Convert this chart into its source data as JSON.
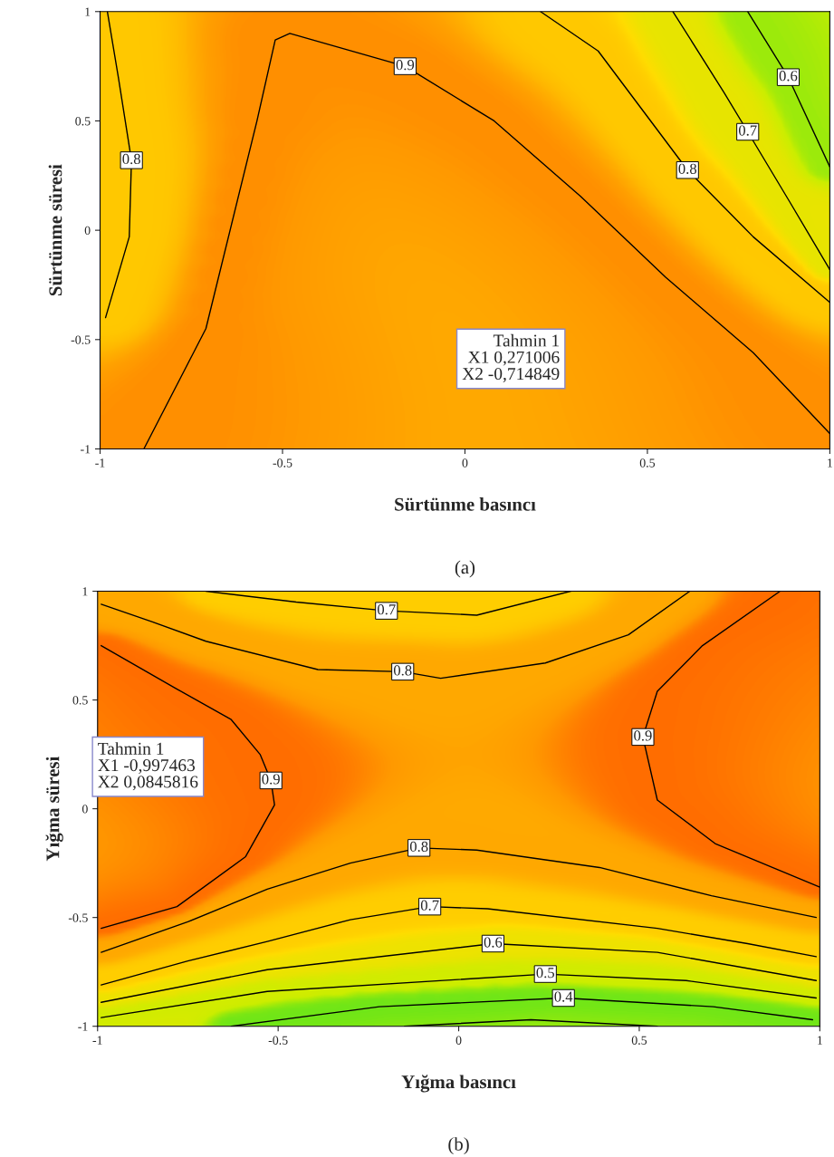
{
  "chart_data": [
    {
      "type": "line",
      "xlabel": "Sürtünme basıncı",
      "ylabel": "Sürtünme süresi",
      "xlim": [
        -1,
        1
      ],
      "ylim": [
        -1,
        1
      ],
      "xticks": [
        -1,
        -0.5,
        0,
        0.5,
        1
      ],
      "yticks": [
        -1,
        -0.5,
        0,
        0.5,
        1
      ],
      "series": [
        {
          "name": "0.8",
          "color": "#000000",
          "x": [
            -0.98,
            -0.95,
            -0.914,
            -0.92,
            -0.985
          ],
          "values": [
            1,
            0.7,
            0.32,
            -0.03,
            -0.4
          ]
        },
        {
          "name": "0.9",
          "color": "#000000",
          "x": [
            -0.88,
            -0.71,
            -0.57,
            -0.52,
            -0.48,
            -0.164,
            0.08,
            0.317,
            0.55,
            0.79,
            1
          ],
          "values": [
            -1,
            -0.45,
            0.5,
            0.87,
            0.9,
            0.75,
            0.5,
            0.155,
            -0.215,
            -0.56,
            -0.93
          ]
        },
        {
          "name": "0.8",
          "color": "#000000",
          "x": [
            0.207,
            0.365,
            0.61,
            0.79,
            1
          ],
          "values": [
            1,
            0.82,
            0.275,
            -0.03,
            -0.33
          ]
        },
        {
          "name": "0.7",
          "color": "#000000",
          "x": [
            0.57,
            0.71,
            0.775,
            0.89,
            1
          ],
          "values": [
            1,
            0.63,
            0.45,
            0.13,
            -0.18
          ]
        },
        {
          "name": "0.6",
          "color": "#000000",
          "x": [
            0.775,
            0.886,
            1
          ],
          "values": [
            1,
            0.7,
            0.29
          ]
        }
      ],
      "annotations": [
        "Tahmin 1\nX1 0,271006\nX2 -0,714849",
        "(a)"
      ]
    },
    {
      "type": "line",
      "xlabel": "Yığma basıncı",
      "ylabel": "Yığma süresi",
      "xlim": [
        -1,
        1
      ],
      "ylim": [
        -1,
        1
      ],
      "xticks": [
        -1,
        -0.5,
        0,
        0.5,
        1
      ],
      "yticks": [
        -1,
        -0.5,
        0,
        0.5,
        1
      ],
      "series": [
        {
          "name": "0.7",
          "color": "#000000",
          "x": [
            -0.7,
            -0.45,
            -0.2,
            0.05,
            0.31
          ],
          "values": [
            1,
            0.95,
            0.91,
            0.89,
            1
          ]
        },
        {
          "name": "0.8",
          "color": "#000000",
          "x": [
            -0.99,
            -0.85,
            -0.7,
            -0.39,
            -0.155,
            -0.05,
            0.24,
            0.47,
            0.64
          ],
          "values": [
            0.94,
            0.86,
            0.77,
            0.64,
            0.63,
            0.6,
            0.67,
            0.8,
            1
          ]
        },
        {
          "name": "0.9",
          "color": "#000000",
          "x": [
            -0.99,
            -0.78,
            -0.63,
            -0.55,
            -0.52,
            -0.51,
            -0.59,
            -0.78,
            -0.99
          ],
          "values": [
            0.75,
            0.55,
            0.41,
            0.25,
            0.13,
            0.018,
            -0.22,
            -0.45,
            -0.55
          ]
        },
        {
          "name": "0.9",
          "color": "#000000",
          "x": [
            0.89,
            0.675,
            0.55,
            0.51,
            0.55,
            0.71,
            1
          ],
          "values": [
            1,
            0.75,
            0.54,
            0.33,
            0.04,
            -0.16,
            -0.36
          ]
        },
        {
          "name": "0.8",
          "color": "#000000",
          "x": [
            -0.99,
            -0.75,
            -0.53,
            -0.3,
            -0.11,
            0.05,
            0.39,
            0.7,
            0.99
          ],
          "values": [
            -0.66,
            -0.52,
            -0.37,
            -0.25,
            -0.18,
            -0.19,
            -0.27,
            -0.4,
            -0.5
          ]
        },
        {
          "name": "0.7",
          "color": "#000000",
          "x": [
            -0.99,
            -0.75,
            -0.53,
            -0.3,
            -0.08,
            0.08,
            0.55,
            0.8,
            0.99
          ],
          "values": [
            -0.81,
            -0.7,
            -0.61,
            -0.51,
            -0.45,
            -0.46,
            -0.55,
            -0.62,
            -0.68
          ]
        },
        {
          "name": "0.6",
          "color": "#000000",
          "x": [
            -0.99,
            -0.53,
            0.095,
            0.55,
            0.99
          ],
          "values": [
            -0.89,
            -0.74,
            -0.62,
            -0.66,
            -0.79
          ]
        },
        {
          "name": "0.5",
          "color": "#000000",
          "x": [
            -0.99,
            -0.53,
            0.24,
            0.63,
            0.99
          ],
          "values": [
            -0.96,
            -0.84,
            -0.76,
            -0.79,
            -0.87
          ]
        },
        {
          "name": "0.4",
          "color": "#000000",
          "x": [
            -0.63,
            -0.22,
            0.29,
            0.705,
            0.98
          ],
          "values": [
            -1,
            -0.91,
            -0.87,
            -0.91,
            -0.97
          ]
        },
        {
          "color": "#000000",
          "x": [
            -0.15,
            0.2,
            0.55
          ],
          "values": [
            -1,
            -0.97,
            -1
          ]
        }
      ],
      "annotations": [
        "Tahmin 1\nX1 -0,997463\nX2 0,0845816",
        "(b)"
      ]
    }
  ]
}
